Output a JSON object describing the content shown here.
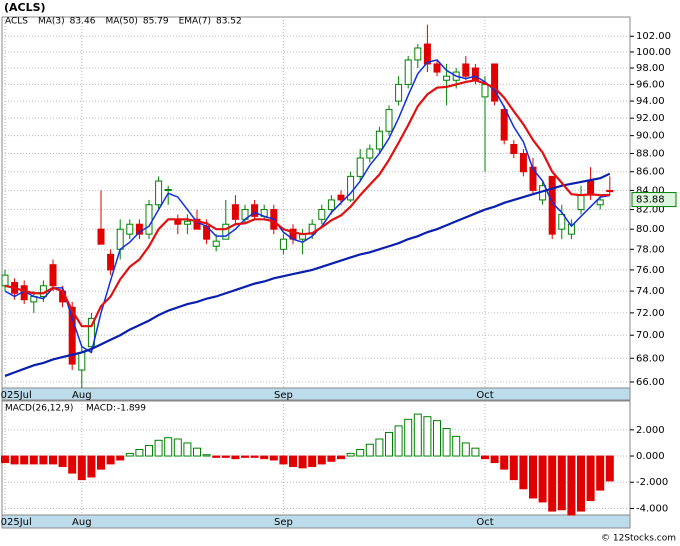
{
  "chart_data": [
    {
      "type": "candlestick",
      "title": "(ACLS)",
      "symbol": "ACLS",
      "log_scale": true,
      "grid": true,
      "up_color": "#008000",
      "down_color": "#e00000",
      "categories": [
        "2025Jul",
        null,
        null,
        null,
        null,
        null,
        null,
        null,
        "Aug",
        null,
        null,
        null,
        null,
        null,
        null,
        null,
        null,
        null,
        null,
        null,
        null,
        null,
        null,
        null,
        null,
        null,
        null,
        null,
        null,
        "Sep",
        null,
        null,
        null,
        null,
        null,
        null,
        null,
        null,
        null,
        null,
        null,
        null,
        null,
        null,
        null,
        null,
        null,
        null,
        null,
        null,
        "Oct",
        null,
        null,
        null,
        null,
        null,
        null,
        null,
        null,
        null,
        null,
        null,
        null,
        null
      ],
      "open": [
        74.5,
        74.8,
        74.5,
        73.0,
        73.5,
        76.5,
        74.0,
        72.5,
        67.0,
        69.0,
        80.0,
        77.5,
        78.0,
        79.5,
        80.5,
        79.5,
        82.5,
        84.0,
        81.0,
        80.5,
        81.0,
        80.3,
        78.3,
        79.0,
        82.5,
        81.0,
        82.5,
        81.3,
        82.0,
        78.0,
        80.0,
        79.0,
        79.5,
        81.0,
        82.0,
        83.5,
        83.0,
        85.5,
        87.5,
        88.5,
        90.5,
        94.0,
        96.0,
        99.0,
        101.0,
        98.5,
        96.5,
        96.5,
        98.5,
        98.0,
        94.5,
        98.5,
        93.0,
        89.0,
        88.0,
        86.5,
        83.0,
        85.5,
        80.0,
        79.5,
        82.0,
        85.0,
        82.5,
        84.0
      ],
      "high": [
        76.0,
        75.2,
        75.0,
        74.0,
        75.0,
        77.0,
        74.5,
        73.0,
        69.0,
        72.0,
        84.0,
        78.0,
        81.0,
        81.0,
        81.0,
        83.0,
        85.5,
        84.5,
        81.5,
        81.5,
        82.0,
        81.0,
        79.5,
        83.0,
        83.5,
        82.5,
        83.0,
        82.5,
        82.5,
        79.5,
        80.5,
        80.0,
        81.0,
        82.5,
        83.5,
        84.0,
        86.0,
        88.5,
        89.0,
        91.0,
        93.5,
        97.0,
        99.5,
        101.0,
        103.5,
        99.0,
        98.5,
        98.0,
        99.5,
        98.5,
        97.0,
        98.5,
        93.5,
        89.5,
        88.5,
        87.5,
        85.0,
        85.5,
        82.5,
        81.0,
        84.5,
        86.5,
        83.5,
        85.5
      ],
      "low": [
        74.0,
        73.2,
        72.8,
        72.0,
        73.0,
        74.0,
        72.5,
        67.0,
        65.5,
        68.5,
        78.5,
        75.5,
        77.0,
        79.0,
        79.0,
        79.0,
        82.0,
        82.5,
        79.5,
        79.5,
        80.0,
        78.5,
        77.8,
        79.0,
        80.5,
        80.5,
        81.0,
        81.0,
        79.5,
        77.5,
        78.5,
        77.5,
        79.0,
        80.5,
        81.5,
        82.5,
        82.8,
        85.0,
        87.0,
        88.0,
        90.0,
        93.5,
        95.5,
        98.0,
        97.5,
        97.0,
        93.5,
        95.5,
        96.5,
        96.0,
        86.0,
        93.5,
        89.0,
        87.5,
        85.5,
        83.5,
        82.5,
        79.0,
        79.0,
        79.0,
        81.5,
        83.0,
        82.0,
        83.5
      ],
      "close": [
        75.5,
        73.8,
        73.2,
        73.5,
        74.5,
        74.5,
        73.0,
        67.5,
        68.5,
        71.5,
        78.5,
        76.0,
        80.0,
        80.5,
        79.5,
        82.5,
        85.0,
        84.1,
        80.5,
        80.8,
        80.0,
        79.0,
        78.8,
        80.5,
        81.0,
        82.0,
        81.3,
        82.0,
        80.0,
        79.0,
        79.0,
        79.5,
        80.5,
        82.0,
        83.0,
        83.0,
        85.5,
        87.5,
        88.5,
        90.5,
        93.0,
        96.0,
        99.0,
        100.5,
        98.5,
        97.5,
        97.0,
        97.5,
        97.0,
        96.5,
        96.0,
        94.0,
        89.5,
        88.0,
        86.0,
        84.0,
        84.5,
        79.5,
        81.5,
        80.5,
        83.5,
        83.5,
        83.0,
        83.88
      ],
      "series": [
        {
          "name": "MA(3)",
          "color": "#1030e0",
          "width": 1.5,
          "values": [
            74.0,
            73.5,
            74.0,
            73.5,
            73.3,
            74.3,
            74.3,
            71.5,
            69.0,
            68.5,
            72.0,
            75.0,
            78.0,
            78.7,
            79.7,
            80.3,
            82.0,
            83.7,
            83.3,
            82.0,
            80.7,
            80.3,
            79.3,
            79.3,
            80.0,
            81.0,
            81.7,
            81.3,
            81.0,
            79.7,
            79.0,
            78.7,
            79.3,
            80.3,
            81.7,
            82.7,
            83.7,
            85.0,
            86.7,
            88.0,
            89.7,
            92.0,
            94.7,
            97.3,
            98.7,
            99.0,
            97.7,
            97.0,
            96.7,
            97.0,
            96.3,
            95.3,
            93.3,
            91.0,
            89.3,
            86.3,
            85.0,
            82.7,
            81.7,
            80.3,
            81.3,
            82.3,
            83.3,
            83.46
          ]
        },
        {
          "name": "MA(50)",
          "color": "#0a1fb0",
          "width": 2.2,
          "values": [
            66.5,
            66.8,
            67.1,
            67.4,
            67.6,
            67.9,
            68.1,
            68.3,
            68.5,
            68.8,
            69.2,
            69.6,
            70.0,
            70.5,
            70.9,
            71.3,
            71.8,
            72.2,
            72.5,
            72.8,
            73.0,
            73.3,
            73.5,
            73.8,
            74.1,
            74.4,
            74.7,
            74.9,
            75.2,
            75.4,
            75.6,
            75.8,
            76.0,
            76.3,
            76.6,
            76.9,
            77.2,
            77.5,
            77.7,
            78.0,
            78.3,
            78.6,
            79.0,
            79.3,
            79.7,
            80.0,
            80.4,
            80.8,
            81.2,
            81.6,
            82.0,
            82.3,
            82.7,
            83.0,
            83.3,
            83.6,
            83.9,
            84.2,
            84.5,
            84.7,
            84.9,
            85.1,
            85.3,
            85.79
          ]
        },
        {
          "name": "EMA(7)",
          "color": "#e01010",
          "width": 2.2,
          "values": [
            74.5,
            74.3,
            74.0,
            73.8,
            73.8,
            74.3,
            74.0,
            72.2,
            70.8,
            70.8,
            72.6,
            73.5,
            75.1,
            76.3,
            77.0,
            78.3,
            80.0,
            81.0,
            81.0,
            81.0,
            80.8,
            80.6,
            80.0,
            80.0,
            80.5,
            80.6,
            81.0,
            81.0,
            80.8,
            80.0,
            79.7,
            79.5,
            79.6,
            80.2,
            80.9,
            81.4,
            82.3,
            83.5,
            84.6,
            85.7,
            87.3,
            89.2,
            91.2,
            93.4,
            94.8,
            95.6,
            95.7,
            96.0,
            96.3,
            96.5,
            96.1,
            95.6,
            94.4,
            92.8,
            91.3,
            89.5,
            88.1,
            86.0,
            84.8,
            83.6,
            83.5,
            83.6,
            83.5,
            83.52
          ]
        }
      ],
      "ylim": [
        65.5,
        104.5
      ],
      "yticks": [
        {
          "value": 66,
          "label": "66.00"
        },
        {
          "value": 68,
          "label": "68.00"
        },
        {
          "value": 70,
          "label": "70.00"
        },
        {
          "value": 72,
          "label": "72.00"
        },
        {
          "value": 74,
          "label": "74.00"
        },
        {
          "value": 76,
          "label": "76.00"
        },
        {
          "value": 78,
          "label": "78.00"
        },
        {
          "value": 80,
          "label": "80.00"
        },
        {
          "value": 82,
          "label": "82.00"
        },
        {
          "value": 84,
          "label": "84.00"
        },
        {
          "value": 86,
          "label": "86.00"
        },
        {
          "value": 88,
          "label": "88.00"
        },
        {
          "value": 90,
          "label": "90.00"
        },
        {
          "value": 92,
          "label": "92.00"
        },
        {
          "value": 94,
          "label": "94.00"
        },
        {
          "value": 96,
          "label": "96.00"
        },
        {
          "value": 98,
          "label": "98.00"
        },
        {
          "value": 100,
          "label": "100.00"
        },
        {
          "value": 102,
          "label": "102.00"
        }
      ]
    },
    {
      "type": "histogram-bars",
      "title": "MACD(26,12,9)",
      "value_name": "MACD:",
      "credit": "© 12Stocks.com",
      "grid": true,
      "up_color": "#008000",
      "down_color": "#e00000",
      "values": [
        -0.5,
        -0.6,
        -0.6,
        -0.6,
        -0.6,
        -0.6,
        -0.8,
        -1.3,
        -1.8,
        -1.6,
        -1.0,
        -0.6,
        -0.3,
        0.2,
        0.5,
        0.8,
        1.2,
        1.4,
        1.3,
        1.0,
        0.6,
        0.1,
        -0.1,
        -0.1,
        -0.2,
        -0.1,
        -0.1,
        -0.2,
        -0.3,
        -0.6,
        -0.8,
        -0.9,
        -0.8,
        -0.6,
        -0.4,
        -0.2,
        0.2,
        0.5,
        0.9,
        1.3,
        1.8,
        2.3,
        2.8,
        3.2,
        3.0,
        2.7,
        2.1,
        1.5,
        1.0,
        0.6,
        -0.2,
        -0.5,
        -1.0,
        -1.8,
        -2.5,
        -3.2,
        -3.5,
        -4.2,
        -4.1,
        -4.5,
        -4.2,
        -3.4,
        -2.6,
        -1.899
      ],
      "ylim": [
        -4.5,
        4.2
      ],
      "yticks": [
        {
          "value": -4,
          "label": "-4.000"
        },
        {
          "value": -2,
          "label": "-2.000"
        },
        {
          "value": 0,
          "label": "0.000"
        },
        {
          "value": 2,
          "label": "2.000"
        }
      ]
    }
  ]
}
